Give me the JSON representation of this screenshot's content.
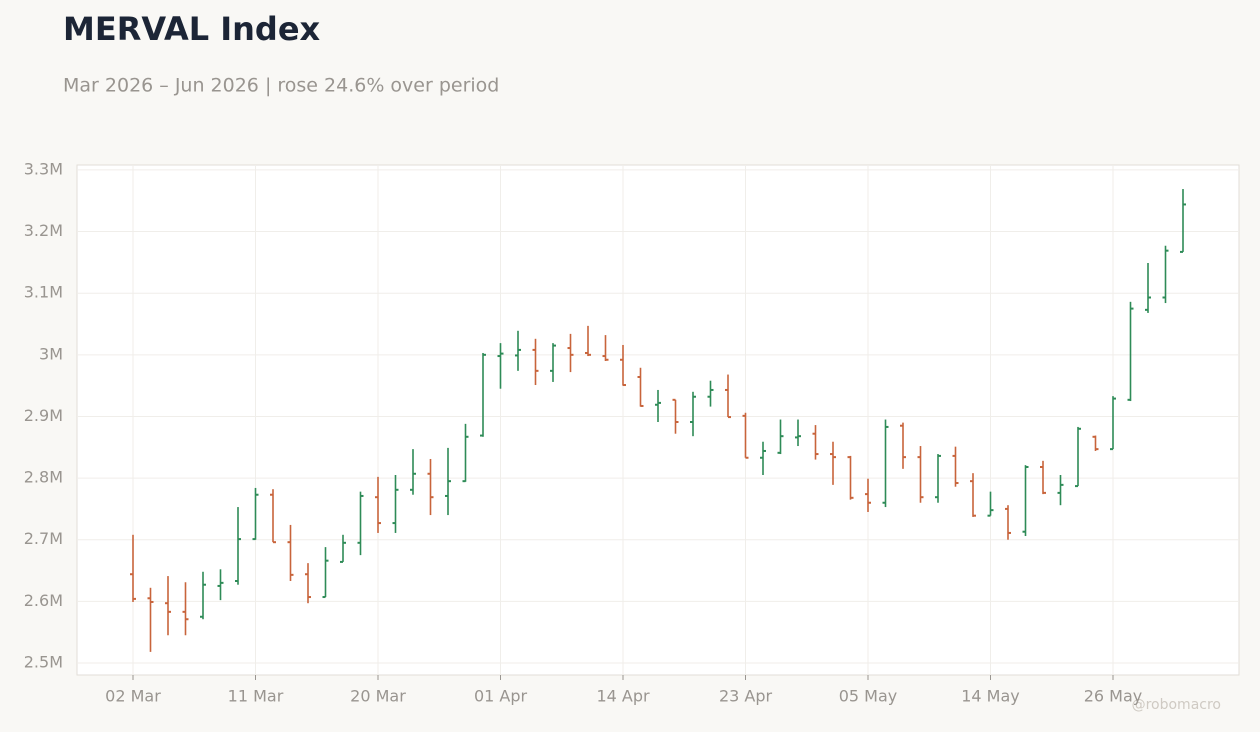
{
  "chart_data": {
    "type": "ohlc",
    "title": "MERVAL Index",
    "subtitle": "Mar 2026 – Jun 2026 | rose 24.6% over period",
    "watermark": "@robomacro",
    "up_color": "#2e8b57",
    "down_color": "#c8643b",
    "grid": true,
    "categories": [
      "02 Mar",
      null,
      null,
      null,
      null,
      null,
      null,
      "11 Mar",
      null,
      null,
      null,
      null,
      null,
      null,
      "20 Mar",
      null,
      null,
      null,
      null,
      null,
      null,
      "01 Apr",
      null,
      null,
      null,
      null,
      null,
      null,
      "14 Apr",
      null,
      null,
      null,
      null,
      null,
      null,
      "23 Apr",
      null,
      null,
      null,
      null,
      null,
      null,
      "05 May",
      null,
      null,
      null,
      null,
      null,
      null,
      "14 May",
      null,
      null,
      null,
      null,
      null,
      null,
      "26 May",
      null,
      null,
      null,
      null
    ],
    "open": [
      2644000,
      2605000,
      2597000,
      2583000,
      2575000,
      2625000,
      2633000,
      2701000,
      2773000,
      2696000,
      2644000,
      2607000,
      2664000,
      2695000,
      2769000,
      2727000,
      2781000,
      2807000,
      2771000,
      2795000,
      2869000,
      2998000,
      2999000,
      3008000,
      2974000,
      3011000,
      3003000,
      2998000,
      2992000,
      2964000,
      2919000,
      2927000,
      2891000,
      2932000,
      2943000,
      2901000,
      2833000,
      2841000,
      2866000,
      2872000,
      2839000,
      2834000,
      2774000,
      2760000,
      2885000,
      2834000,
      2769000,
      2836000,
      2795000,
      2739000,
      2750000,
      2713000,
      2818000,
      2776000,
      2787000,
      2867000,
      2847000,
      2927000,
      3073000,
      3093000,
      3167000
    ],
    "high": [
      2708000,
      2622000,
      2641000,
      2631000,
      2648000,
      2652000,
      2753000,
      2784000,
      2782000,
      2724000,
      2662000,
      2688000,
      2708000,
      2778000,
      2802000,
      2805000,
      2847000,
      2831000,
      2849000,
      2888000,
      3003000,
      3019000,
      3039000,
      3026000,
      3019000,
      3034000,
      3047000,
      3032000,
      3016000,
      2979000,
      2943000,
      2927000,
      2940000,
      2958000,
      2968000,
      2906000,
      2859000,
      2895000,
      2895000,
      2886000,
      2859000,
      2836000,
      2799000,
      2895000,
      2890000,
      2852000,
      2839000,
      2851000,
      2808000,
      2778000,
      2756000,
      2821000,
      2828000,
      2805000,
      2883000,
      2869000,
      2933000,
      3086000,
      3149000,
      3177000,
      3269000
    ],
    "low": [
      2599000,
      2518000,
      2545000,
      2545000,
      2571000,
      2602000,
      2627000,
      2700000,
      2696000,
      2633000,
      2597000,
      2607000,
      2664000,
      2675000,
      2711000,
      2711000,
      2773000,
      2740000,
      2740000,
      2794000,
      2867000,
      2945000,
      2974000,
      2951000,
      2956000,
      2972000,
      2998000,
      2990000,
      2950000,
      2916000,
      2891000,
      2872000,
      2868000,
      2916000,
      2899000,
      2833000,
      2805000,
      2839000,
      2852000,
      2830000,
      2789000,
      2765000,
      2745000,
      2753000,
      2815000,
      2760000,
      2760000,
      2786000,
      2737000,
      2739000,
      2700000,
      2706000,
      2774000,
      2756000,
      2787000,
      2844000,
      2847000,
      2925000,
      3068000,
      3084000,
      3167000
    ],
    "close": [
      2604000,
      2599000,
      2583000,
      2571000,
      2627000,
      2630000,
      2701000,
      2773000,
      2696000,
      2643000,
      2607000,
      2666000,
      2695000,
      2771000,
      2727000,
      2781000,
      2807000,
      2769000,
      2795000,
      2867000,
      3000000,
      3002000,
      3008000,
      2974000,
      3015000,
      3000000,
      3000000,
      2992000,
      2951000,
      2917000,
      2922000,
      2891000,
      2932000,
      2943000,
      2899000,
      2833000,
      2844000,
      2868000,
      2868000,
      2839000,
      2834000,
      2768000,
      2760000,
      2883000,
      2834000,
      2769000,
      2836000,
      2792000,
      2739000,
      2748000,
      2711000,
      2818000,
      2776000,
      2789000,
      2880000,
      2847000,
      2929000,
      3075000,
      3093000,
      3169000,
      3244000
    ],
    "ylim": [
      2480500,
      3308000
    ],
    "yticks": [
      {
        "value": 2500000,
        "label": "2.5M"
      },
      {
        "value": 2600000,
        "label": "2.6M"
      },
      {
        "value": 2700000,
        "label": "2.7M"
      },
      {
        "value": 2800000,
        "label": "2.8M"
      },
      {
        "value": 2900000,
        "label": "2.9M"
      },
      {
        "value": 3000000,
        "label": "3M"
      },
      {
        "value": 3100000,
        "label": "3.1M"
      },
      {
        "value": 3200000,
        "label": "3.2M"
      },
      {
        "value": 3300000,
        "label": "3.3M"
      }
    ]
  }
}
